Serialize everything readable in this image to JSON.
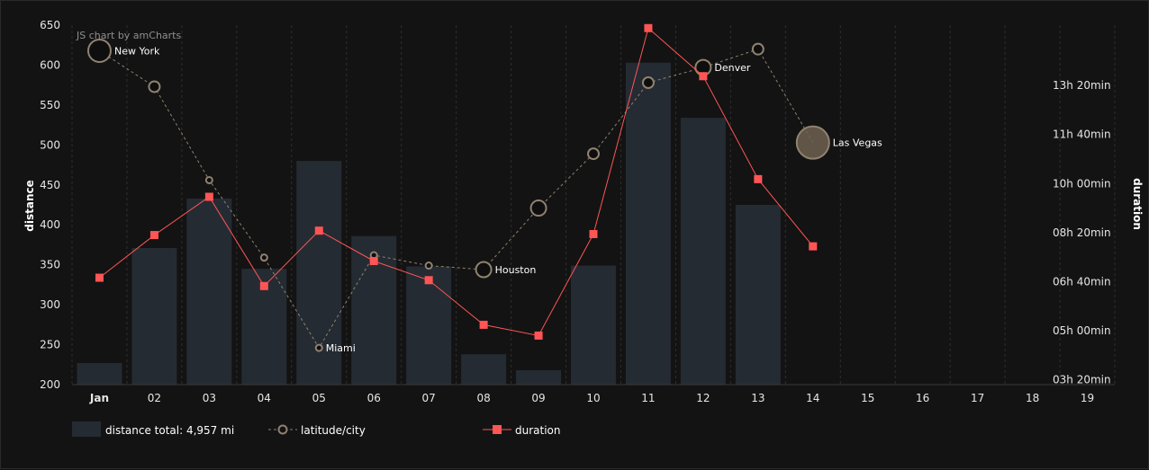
{
  "chart_data": {
    "type": "bar+line",
    "credit": "JS chart by amCharts",
    "categories": [
      "Jan",
      "02",
      "03",
      "04",
      "05",
      "06",
      "07",
      "08",
      "09",
      "10",
      "11",
      "12",
      "13",
      "14",
      "15",
      "16",
      "17",
      "18",
      "19"
    ],
    "highlight_category": "Jan",
    "y_left": {
      "label": "distance",
      "min": 200,
      "max": 650,
      "ticks": [
        200,
        250,
        300,
        350,
        400,
        450,
        500,
        550,
        600,
        650
      ]
    },
    "y_right": {
      "label": "duration",
      "min_minutes": 190,
      "max_minutes": 923,
      "ticks": [
        {
          "minutes": 200,
          "label": "03h 20min"
        },
        {
          "minutes": 300,
          "label": "05h 00min"
        },
        {
          "minutes": 400,
          "label": "06h 40min"
        },
        {
          "minutes": 500,
          "label": "08h 20min"
        },
        {
          "minutes": 600,
          "label": "10h 00min"
        },
        {
          "minutes": 700,
          "label": "11h 40min"
        },
        {
          "minutes": 800,
          "label": "13h 20min"
        }
      ]
    },
    "series": [
      {
        "name": "distance",
        "kind": "bar",
        "color": "#252b33",
        "values": [
          227,
          371,
          433,
          345,
          480,
          386,
          348,
          238,
          218,
          349,
          603,
          534,
          425,
          null,
          null,
          null,
          null,
          null,
          null
        ]
      },
      {
        "name": "latitude/city",
        "kind": "bubble-line",
        "color": "#8f8270",
        "line_dash": "dashed",
        "points": [
          {
            "value": 618,
            "size": "large",
            "city": "New York"
          },
          {
            "value": 573,
            "size": "medium",
            "city": ""
          },
          {
            "value": 456,
            "size": "small",
            "city": ""
          },
          {
            "value": 359,
            "size": "small",
            "city": ""
          },
          {
            "value": 246,
            "size": "small",
            "city": "Miami"
          },
          {
            "value": 362,
            "size": "small",
            "city": ""
          },
          {
            "value": 349,
            "size": "small",
            "city": ""
          },
          {
            "value": 344,
            "size": "medium-large",
            "city": "Houston"
          },
          {
            "value": 421,
            "size": "medium-large",
            "city": ""
          },
          {
            "value": 489,
            "size": "medium",
            "city": ""
          },
          {
            "value": 578,
            "size": "medium",
            "city": ""
          },
          {
            "value": 597,
            "size": "medium-large",
            "city": "Denver"
          },
          {
            "value": 620,
            "size": "medium",
            "city": ""
          },
          {
            "value": 503,
            "size": "xlarge",
            "city": "Las Vegas",
            "filled": true
          }
        ]
      },
      {
        "name": "duration",
        "kind": "line",
        "color": "#ff5555",
        "minutes": [
          408,
          495,
          573,
          391,
          504,
          442,
          403,
          312,
          290,
          497,
          917,
          819,
          609,
          472
        ]
      }
    ],
    "legend": {
      "placement": "bottom-left",
      "items": [
        {
          "label": "distance total: 4,957 mi",
          "kind": "bar"
        },
        {
          "label": "latitude/city",
          "kind": "bubble-line"
        },
        {
          "label": "duration",
          "kind": "line"
        }
      ]
    },
    "grid": "vertical dashed"
  }
}
